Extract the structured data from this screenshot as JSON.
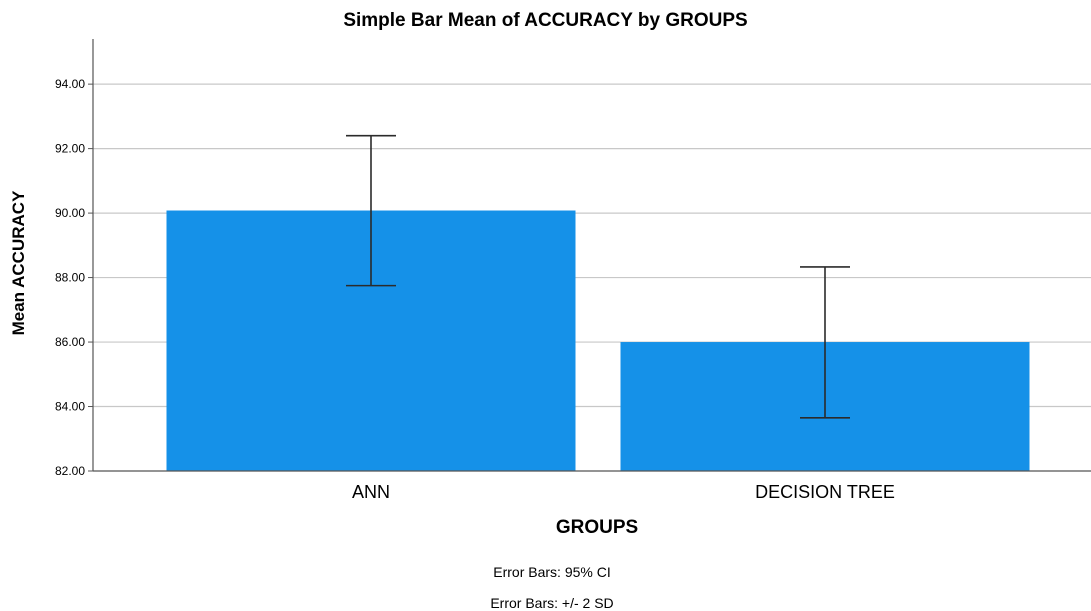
{
  "chart_data": {
    "type": "bar",
    "title": "Simple Bar Mean of ACCURACY by GROUPS",
    "xlabel": "GROUPS",
    "ylabel": "Mean ACCURACY",
    "categories": [
      "ANN",
      "DECISION TREE"
    ],
    "values": [
      90.08,
      86.0
    ],
    "error_bars": [
      {
        "low": 87.75,
        "high": 92.4
      },
      {
        "low": 83.65,
        "high": 88.33
      }
    ],
    "ylim": [
      82.0,
      95.4
    ],
    "yticks": [
      "82.00",
      "84.00",
      "86.00",
      "88.00",
      "90.00",
      "92.00",
      "94.00"
    ],
    "grid": true,
    "bar_color": "#1591e8",
    "notes": [
      "Error Bars: 95% CI",
      "Error Bars: +/- 2 SD"
    ]
  }
}
